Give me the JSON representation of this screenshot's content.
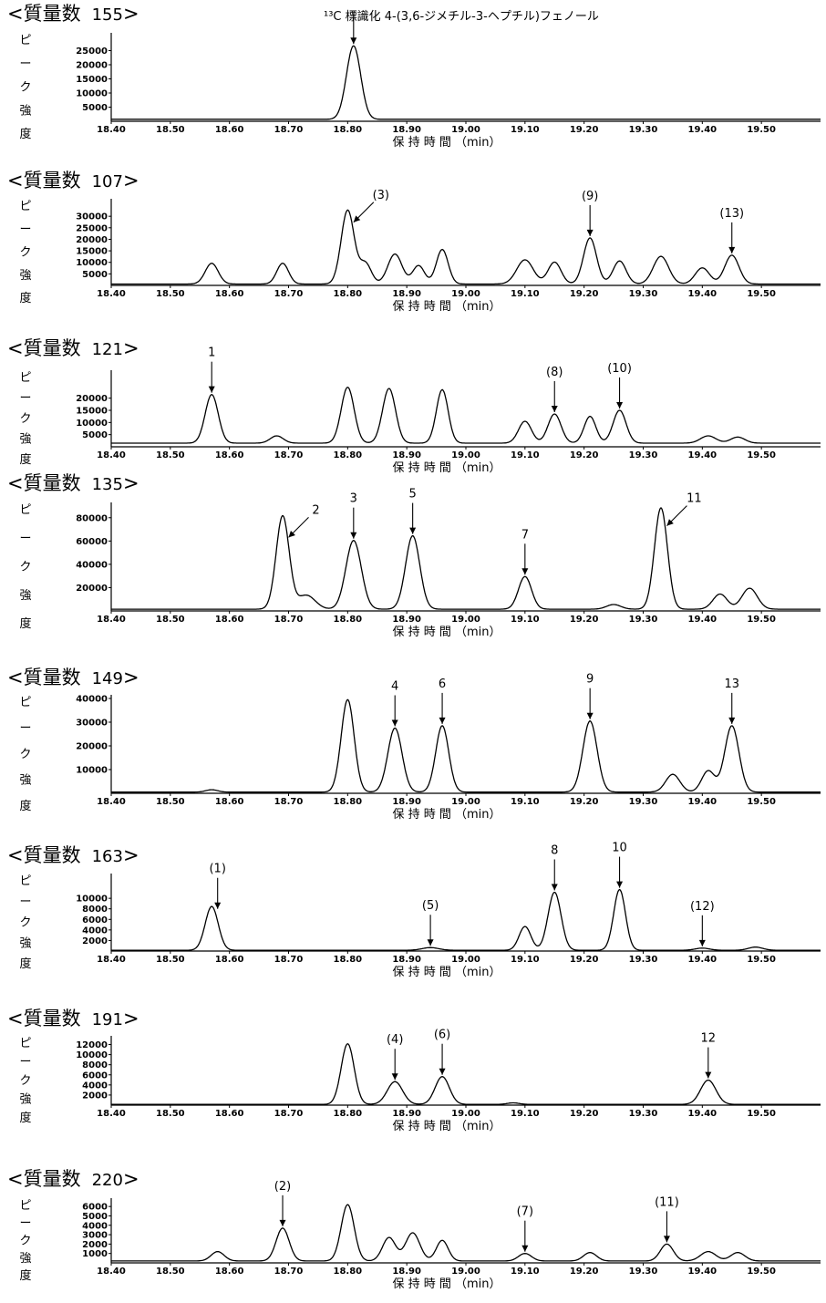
{
  "chart_data": [
    {
      "type": "line",
      "mass_label": "質量数",
      "mass": "155",
      "annotation_title": "¹³C 標識化 4-(3,6-ジメチル-3-ヘプチル)フェノール",
      "ylabel": [
        "ピ",
        "ー",
        "ク",
        "強",
        "度"
      ],
      "xlabel": "保 持 時 間 （min）",
      "x_ticks": [
        "18.40",
        "18.50",
        "18.60",
        "18.70",
        "18.80",
        "18.90",
        "19.00",
        "19.10",
        "19.20",
        "19.30",
        "19.40",
        "19.50"
      ],
      "xlim": [
        18.4,
        19.6
      ],
      "y_ticks": [
        "25000",
        "20000",
        "15000",
        "10000",
        "5000"
      ],
      "y_tick_values": [
        25000,
        20000,
        15000,
        10000,
        5000
      ],
      "ylim": [
        0,
        30000
      ],
      "baseline": 700,
      "peaks": [
        {
          "rt": 18.81,
          "height": 26000,
          "width": 0.012
        }
      ],
      "annotations": [
        {
          "label": "",
          "x": 18.81,
          "y": 26000,
          "dir": "down"
        }
      ]
    },
    {
      "type": "line",
      "mass_label": "質量数",
      "mass": "107",
      "ylabel": [
        "ピ",
        "ー",
        "ク",
        "強",
        "度"
      ],
      "xlabel": "保 持 時 間 （min）",
      "x_ticks": [
        "18.40",
        "18.50",
        "18.60",
        "18.70",
        "18.80",
        "18.90",
        "19.00",
        "19.10",
        "19.20",
        "19.30",
        "19.40",
        "19.50"
      ],
      "xlim": [
        18.4,
        19.6
      ],
      "y_ticks": [
        "30000",
        "25000",
        "20000",
        "15000",
        "10000",
        "5000"
      ],
      "y_tick_values": [
        30000,
        25000,
        20000,
        15000,
        10000,
        5000
      ],
      "ylim": [
        0,
        36000
      ],
      "baseline": 600,
      "peaks": [
        {
          "rt": 18.57,
          "height": 9000,
          "width": 0.011
        },
        {
          "rt": 18.69,
          "height": 9000,
          "width": 0.01
        },
        {
          "rt": 18.8,
          "height": 32000,
          "width": 0.011
        },
        {
          "rt": 18.83,
          "height": 9000,
          "width": 0.01
        },
        {
          "rt": 18.88,
          "height": 13000,
          "width": 0.012
        },
        {
          "rt": 18.92,
          "height": 8000,
          "width": 0.01
        },
        {
          "rt": 18.96,
          "height": 15000,
          "width": 0.01
        },
        {
          "rt": 19.1,
          "height": 10500,
          "width": 0.014
        },
        {
          "rt": 19.15,
          "height": 9500,
          "width": 0.011
        },
        {
          "rt": 19.21,
          "height": 20000,
          "width": 0.011
        },
        {
          "rt": 19.26,
          "height": 10000,
          "width": 0.011
        },
        {
          "rt": 19.33,
          "height": 12000,
          "width": 0.013
        },
        {
          "rt": 19.4,
          "height": 7000,
          "width": 0.012
        },
        {
          "rt": 19.45,
          "height": 12500,
          "width": 0.012
        }
      ],
      "annotations": [
        {
          "label": "(3)",
          "x": 18.81,
          "y": 26000,
          "dir": "diag"
        },
        {
          "label": "(9)",
          "x": 19.21,
          "y": 20000,
          "dir": "down"
        },
        {
          "label": "(13)",
          "x": 19.45,
          "y": 12500,
          "dir": "down"
        }
      ]
    },
    {
      "type": "line",
      "mass_label": "質量数",
      "mass": "121",
      "ylabel": [
        "ピ",
        "ー",
        "ク",
        "強",
        "度"
      ],
      "xlabel": "保 持 時 間 （min）",
      "x_ticks": [
        "18.40",
        "18.50",
        "18.60",
        "18.70",
        "18.80",
        "18.90",
        "19.00",
        "19.10",
        "19.20",
        "19.30",
        "19.40",
        "19.50"
      ],
      "xlim": [
        18.4,
        19.6
      ],
      "y_ticks": [
        "20000",
        "15000",
        "10000",
        "5000"
      ],
      "y_tick_values": [
        20000,
        15000,
        10000,
        5000
      ],
      "ylim": [
        0,
        30000
      ],
      "baseline": 1500,
      "peaks": [
        {
          "rt": 18.57,
          "height": 20000,
          "width": 0.011
        },
        {
          "rt": 18.68,
          "height": 3000,
          "width": 0.011
        },
        {
          "rt": 18.8,
          "height": 23000,
          "width": 0.011
        },
        {
          "rt": 18.87,
          "height": 22500,
          "width": 0.011
        },
        {
          "rt": 18.96,
          "height": 22000,
          "width": 0.01
        },
        {
          "rt": 19.1,
          "height": 9000,
          "width": 0.011
        },
        {
          "rt": 19.15,
          "height": 12000,
          "width": 0.011
        },
        {
          "rt": 19.21,
          "height": 11000,
          "width": 0.01
        },
        {
          "rt": 19.26,
          "height": 13500,
          "width": 0.011
        },
        {
          "rt": 19.41,
          "height": 3000,
          "width": 0.013
        },
        {
          "rt": 19.46,
          "height": 2500,
          "width": 0.012
        }
      ],
      "annotations": [
        {
          "label": "1",
          "x": 18.57,
          "y": 20000,
          "dir": "down"
        },
        {
          "label": "(8)",
          "x": 19.15,
          "y": 12000,
          "dir": "down"
        },
        {
          "label": "(10)",
          "x": 19.26,
          "y": 13500,
          "dir": "down"
        }
      ]
    },
    {
      "type": "line",
      "mass_label": "質量数",
      "mass": "135",
      "ylabel": [
        "ピ",
        "ー",
        "ク",
        "強",
        "度"
      ],
      "xlabel": "保 持 時 間 （min）",
      "x_ticks": [
        "18.40",
        "18.50",
        "18.60",
        "18.70",
        "18.80",
        "18.90",
        "19.00",
        "19.10",
        "19.20",
        "19.30",
        "19.40",
        "19.50"
      ],
      "xlim": [
        18.4,
        19.6
      ],
      "y_ticks": [
        "80000",
        "60000",
        "40000",
        "20000"
      ],
      "y_tick_values": [
        80000,
        60000,
        40000,
        20000
      ],
      "ylim": [
        0,
        90000
      ],
      "baseline": 1500,
      "peaks": [
        {
          "rt": 18.69,
          "height": 80000,
          "width": 0.011
        },
        {
          "rt": 18.73,
          "height": 12000,
          "width": 0.015
        },
        {
          "rt": 18.81,
          "height": 59000,
          "width": 0.013
        },
        {
          "rt": 18.91,
          "height": 63000,
          "width": 0.012
        },
        {
          "rt": 19.1,
          "height": 28000,
          "width": 0.011
        },
        {
          "rt": 19.25,
          "height": 4000,
          "width": 0.012
        },
        {
          "rt": 19.33,
          "height": 87000,
          "width": 0.011
        },
        {
          "rt": 19.43,
          "height": 13000,
          "width": 0.012
        },
        {
          "rt": 19.48,
          "height": 18000,
          "width": 0.013
        }
      ],
      "annotations": [
        {
          "label": "2",
          "x": 18.7,
          "y": 60000,
          "dir": "diag"
        },
        {
          "label": "3",
          "x": 18.81,
          "y": 59000,
          "dir": "down"
        },
        {
          "label": "5",
          "x": 18.91,
          "y": 63000,
          "dir": "down"
        },
        {
          "label": "7",
          "x": 19.1,
          "y": 28000,
          "dir": "down"
        },
        {
          "label": "11",
          "x": 19.34,
          "y": 70000,
          "dir": "diag"
        }
      ]
    },
    {
      "type": "line",
      "mass_label": "質量数",
      "mass": "149",
      "ylabel": [
        "ピ",
        "ー",
        "ク",
        "強",
        "度"
      ],
      "xlabel": "保 持 時 間 （min）",
      "x_ticks": [
        "18.40",
        "18.50",
        "18.60",
        "18.70",
        "18.80",
        "18.90",
        "19.00",
        "19.10",
        "19.20",
        "19.30",
        "19.40",
        "19.50"
      ],
      "xlim": [
        18.4,
        19.6
      ],
      "y_ticks": [
        "40000",
        "30000",
        "20000",
        "10000"
      ],
      "y_tick_values": [
        40000,
        30000,
        20000,
        10000
      ],
      "ylim": [
        0,
        40000
      ],
      "baseline": 500,
      "peaks": [
        {
          "rt": 18.57,
          "height": 1000,
          "width": 0.01
        },
        {
          "rt": 18.8,
          "height": 39000,
          "width": 0.011
        },
        {
          "rt": 18.88,
          "height": 27000,
          "width": 0.012
        },
        {
          "rt": 18.96,
          "height": 28000,
          "width": 0.011
        },
        {
          "rt": 19.21,
          "height": 30000,
          "width": 0.012
        },
        {
          "rt": 19.35,
          "height": 7500,
          "width": 0.012
        },
        {
          "rt": 19.41,
          "height": 9000,
          "width": 0.011
        },
        {
          "rt": 19.45,
          "height": 28000,
          "width": 0.012
        }
      ],
      "annotations": [
        {
          "label": "4",
          "x": 18.88,
          "y": 27000,
          "dir": "down"
        },
        {
          "label": "6",
          "x": 18.96,
          "y": 28000,
          "dir": "down"
        },
        {
          "label": "9",
          "x": 19.21,
          "y": 30000,
          "dir": "down"
        },
        {
          "label": "13",
          "x": 19.45,
          "y": 28000,
          "dir": "down"
        }
      ]
    },
    {
      "type": "line",
      "mass_label": "質量数",
      "mass": "163",
      "ylabel": [
        "ピ",
        "ー",
        "ク",
        "強",
        "度"
      ],
      "xlabel": "保 持 時 間 （min）",
      "x_ticks": [
        "18.40",
        "18.50",
        "18.60",
        "18.70",
        "18.80",
        "18.90",
        "19.00",
        "19.10",
        "19.20",
        "19.30",
        "19.40",
        "19.50"
      ],
      "xlim": [
        18.4,
        19.6
      ],
      "y_ticks": [
        "10000",
        "8000",
        "6000",
        "4000",
        "2000"
      ],
      "y_tick_values": [
        10000,
        8000,
        6000,
        4000,
        2000
      ],
      "ylim": [
        0,
        14000
      ],
      "baseline": 150,
      "peaks": [
        {
          "rt": 18.57,
          "height": 8300,
          "width": 0.011
        },
        {
          "rt": 18.94,
          "height": 500,
          "width": 0.014
        },
        {
          "rt": 19.1,
          "height": 4500,
          "width": 0.01
        },
        {
          "rt": 19.15,
          "height": 11000,
          "width": 0.011
        },
        {
          "rt": 19.26,
          "height": 11500,
          "width": 0.01
        },
        {
          "rt": 19.4,
          "height": 400,
          "width": 0.012
        },
        {
          "rt": 19.49,
          "height": 600,
          "width": 0.012
        }
      ],
      "annotations": [
        {
          "label": "(1)",
          "x": 18.58,
          "y": 7500,
          "dir": "down"
        },
        {
          "label": "(5)",
          "x": 18.94,
          "y": 500,
          "dir": "down"
        },
        {
          "label": "8",
          "x": 19.15,
          "y": 11000,
          "dir": "down"
        },
        {
          "label": "10",
          "x": 19.26,
          "y": 11500,
          "dir": "down"
        },
        {
          "label": "(12)",
          "x": 19.4,
          "y": 400,
          "dir": "down"
        }
      ]
    },
    {
      "type": "line",
      "mass_label": "質量数",
      "mass": "191",
      "ylabel": [
        "ピ",
        "ー",
        "ク",
        "強",
        "度"
      ],
      "xlabel": "保 持 時 間 （min）",
      "x_ticks": [
        "18.40",
        "18.50",
        "18.60",
        "18.70",
        "18.80",
        "18.90",
        "19.00",
        "19.10",
        "19.20",
        "19.30",
        "19.40",
        "19.50"
      ],
      "xlim": [
        18.4,
        19.6
      ],
      "y_ticks": [
        "12000",
        "10000",
        "8000",
        "6000",
        "4000",
        "2000"
      ],
      "y_tick_values": [
        12000,
        10000,
        8000,
        6000,
        4000,
        2000
      ],
      "ylim": [
        0,
        13000
      ],
      "baseline": 150,
      "peaks": [
        {
          "rt": 18.8,
          "height": 12000,
          "width": 0.011
        },
        {
          "rt": 18.88,
          "height": 4500,
          "width": 0.013
        },
        {
          "rt": 18.96,
          "height": 5500,
          "width": 0.012
        },
        {
          "rt": 19.08,
          "height": 300,
          "width": 0.01
        },
        {
          "rt": 19.41,
          "height": 4800,
          "width": 0.013
        }
      ],
      "annotations": [
        {
          "label": "(4)",
          "x": 18.88,
          "y": 4500,
          "dir": "down"
        },
        {
          "label": "(6)",
          "x": 18.96,
          "y": 5500,
          "dir": "down"
        },
        {
          "label": "12",
          "x": 19.41,
          "y": 4800,
          "dir": "down"
        }
      ]
    },
    {
      "type": "line",
      "mass_label": "質量数",
      "mass": "220",
      "ylabel": [
        "ピ",
        "ー",
        "ク",
        "強",
        "度"
      ],
      "xlabel": "保 持 時 間 （min）",
      "x_ticks": [
        "18.40",
        "18.50",
        "18.60",
        "18.70",
        "18.80",
        "18.90",
        "19.00",
        "19.10",
        "19.20",
        "19.30",
        "19.40",
        "19.50"
      ],
      "xlim": [
        18.4,
        19.6
      ],
      "y_ticks": [
        "6000",
        "5000",
        "4000",
        "3000",
        "2000",
        "1000"
      ],
      "y_tick_values": [
        6000,
        5000,
        4000,
        3000,
        2000,
        1000
      ],
      "ylim": [
        0,
        6500
      ],
      "baseline": 200,
      "peaks": [
        {
          "rt": 18.58,
          "height": 1000,
          "width": 0.011
        },
        {
          "rt": 18.69,
          "height": 3500,
          "width": 0.011
        },
        {
          "rt": 18.8,
          "height": 6000,
          "width": 0.011
        },
        {
          "rt": 18.87,
          "height": 2500,
          "width": 0.011
        },
        {
          "rt": 18.91,
          "height": 3000,
          "width": 0.012
        },
        {
          "rt": 18.96,
          "height": 2200,
          "width": 0.01
        },
        {
          "rt": 19.1,
          "height": 800,
          "width": 0.011
        },
        {
          "rt": 19.21,
          "height": 900,
          "width": 0.011
        },
        {
          "rt": 19.34,
          "height": 1800,
          "width": 0.011
        },
        {
          "rt": 19.41,
          "height": 1000,
          "width": 0.013
        },
        {
          "rt": 19.46,
          "height": 900,
          "width": 0.012
        }
      ],
      "annotations": [
        {
          "label": "(2)",
          "x": 18.69,
          "y": 3500,
          "dir": "down"
        },
        {
          "label": "(7)",
          "x": 19.1,
          "y": 800,
          "dir": "down"
        },
        {
          "label": "(11)",
          "x": 19.34,
          "y": 1800,
          "dir": "down"
        }
      ]
    }
  ]
}
